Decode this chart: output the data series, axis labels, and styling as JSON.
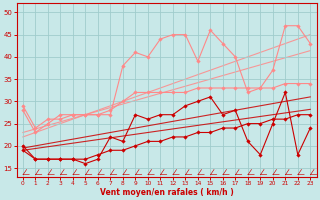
{
  "x": [
    0,
    1,
    2,
    3,
    4,
    5,
    6,
    7,
    8,
    9,
    10,
    11,
    12,
    13,
    14,
    15,
    16,
    17,
    18,
    19,
    20,
    21,
    22,
    23
  ],
  "line_dark1": [
    19,
    17,
    17,
    17,
    17,
    16,
    17,
    22,
    21,
    27,
    26,
    27,
    27,
    29,
    30,
    31,
    27,
    28,
    21,
    18,
    25,
    32,
    18,
    24
  ],
  "line_dark2": [
    20,
    17,
    17,
    17,
    17,
    17,
    18,
    19,
    19,
    20,
    21,
    21,
    22,
    22,
    23,
    23,
    24,
    24,
    25,
    25,
    26,
    26,
    27,
    27
  ],
  "line_pink1": [
    28,
    23,
    25,
    27,
    27,
    27,
    27,
    27,
    38,
    41,
    40,
    44,
    45,
    45,
    39,
    46,
    43,
    40,
    32,
    33,
    37,
    47,
    47,
    43
  ],
  "line_pink2": [
    29,
    24,
    26,
    26,
    27,
    27,
    27,
    28,
    30,
    32,
    32,
    32,
    32,
    32,
    33,
    33,
    33,
    33,
    33,
    33,
    33,
    34,
    34,
    34
  ],
  "trend_dark1": [
    19.5,
    20.0,
    20.5,
    21.0,
    21.5,
    22.0,
    22.5,
    23.0,
    23.5,
    24.0,
    24.5,
    25.0,
    25.5,
    26.0,
    26.5,
    27.0,
    27.5,
    28.0,
    28.5,
    29.0,
    29.5,
    30.0,
    30.5,
    31.0
  ],
  "trend_dark2": [
    19.0,
    19.4,
    19.8,
    20.2,
    20.6,
    21.0,
    21.4,
    21.8,
    22.2,
    22.6,
    23.0,
    23.4,
    23.8,
    24.2,
    24.6,
    25.0,
    25.4,
    25.8,
    26.2,
    26.6,
    27.0,
    27.4,
    27.8,
    28.2
  ],
  "trend_pink1": [
    22.0,
    23.0,
    24.0,
    25.0,
    26.0,
    27.0,
    28.0,
    29.0,
    30.0,
    31.0,
    32.0,
    33.0,
    34.0,
    35.0,
    36.0,
    37.0,
    38.0,
    39.0,
    40.0,
    41.0,
    42.0,
    43.0,
    44.0,
    45.0
  ],
  "trend_pink2": [
    23.0,
    23.8,
    24.6,
    25.4,
    26.2,
    27.0,
    27.8,
    28.6,
    29.4,
    30.2,
    31.0,
    31.8,
    32.6,
    33.4,
    34.2,
    35.0,
    35.8,
    36.6,
    37.4,
    38.2,
    39.0,
    39.8,
    40.6,
    41.4
  ],
  "bg_color": "#c8e8e8",
  "grid_color": "#a0cccc",
  "dark_red": "#cc0000",
  "light_pink": "#ff8888",
  "xlabel": "Vent moyen/en rafales ( km/h )",
  "ylim": [
    13,
    52
  ],
  "yticks": [
    15,
    20,
    25,
    30,
    35,
    40,
    45,
    50
  ],
  "xlim": [
    -0.5,
    23.5
  ],
  "xticks": [
    0,
    1,
    2,
    3,
    4,
    5,
    6,
    7,
    8,
    9,
    10,
    11,
    12,
    13,
    14,
    15,
    16,
    17,
    18,
    19,
    20,
    21,
    22,
    23
  ]
}
